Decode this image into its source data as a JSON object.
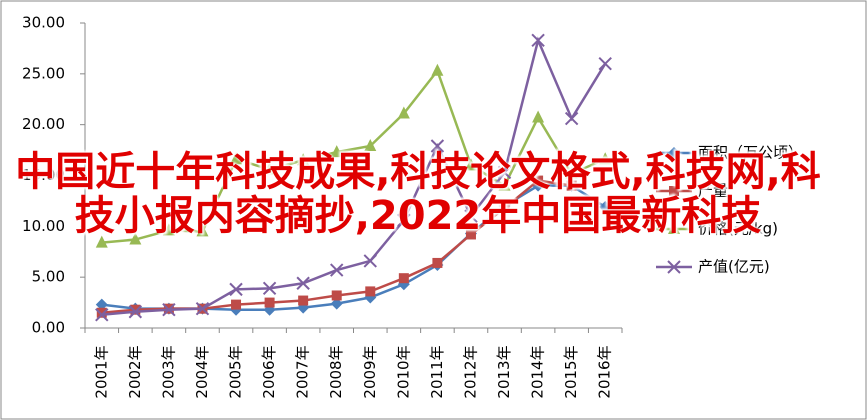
{
  "chart_data": {
    "type": "line",
    "categories": [
      "2001年",
      "2002年",
      "2003年",
      "2004年",
      "2005年",
      "2006年",
      "2007年",
      "2008年",
      "2009年",
      "2010年",
      "2011年",
      "2012年",
      "2013年",
      "2014年",
      "2015年",
      "2016年"
    ],
    "series": [
      {
        "name": "面积（万公顷）",
        "color": "#4a7ebb",
        "marker": "diamond",
        "values": [
          2.3,
          1.9,
          1.9,
          1.9,
          1.8,
          1.8,
          2.0,
          2.4,
          3.0,
          4.3,
          6.2,
          9.3,
          12.0,
          14.0,
          14.0,
          11.9
        ]
      },
      {
        "name": "产量",
        "color": "#be4b48",
        "marker": "square",
        "values": [
          1.5,
          1.8,
          1.9,
          1.9,
          2.3,
          2.5,
          2.7,
          3.2,
          3.6,
          4.9,
          6.4,
          9.2,
          11.8,
          14.5,
          14.0,
          null
        ]
      },
      {
        "name": "价格(元/kg)",
        "color": "#98b954",
        "marker": "triangle",
        "values": [
          8.4,
          8.7,
          9.6,
          9.5,
          16.6,
          15.6,
          16.5,
          17.3,
          17.9,
          21.1,
          25.3,
          16.0,
          14.0,
          20.7,
          15.2,
          16.6
        ]
      },
      {
        "name": "产值(亿元)",
        "color": "#7d60a0",
        "marker": "x",
        "values": [
          1.3,
          1.6,
          1.8,
          1.9,
          3.8,
          3.9,
          4.4,
          5.7,
          6.6,
          10.6,
          17.9,
          11.0,
          15.3,
          28.3,
          20.6,
          26.0
        ]
      }
    ],
    "ylim": [
      0,
      30
    ],
    "yticks": [
      {
        "value": 0,
        "label": "0.00"
      },
      {
        "value": 5,
        "label": "5.00"
      },
      {
        "value": 10,
        "label": "10.00"
      },
      {
        "value": 15,
        "label": "15.00"
      },
      {
        "value": 20,
        "label": "20.00"
      },
      {
        "value": 25,
        "label": "25.00"
      },
      {
        "value": 30,
        "label": "30.00"
      }
    ],
    "legend": "right"
  },
  "overlay_text": "中国近十年科技成果,科技论文格式,科技网,科技小报内容摘抄,2022年中国最新科技"
}
